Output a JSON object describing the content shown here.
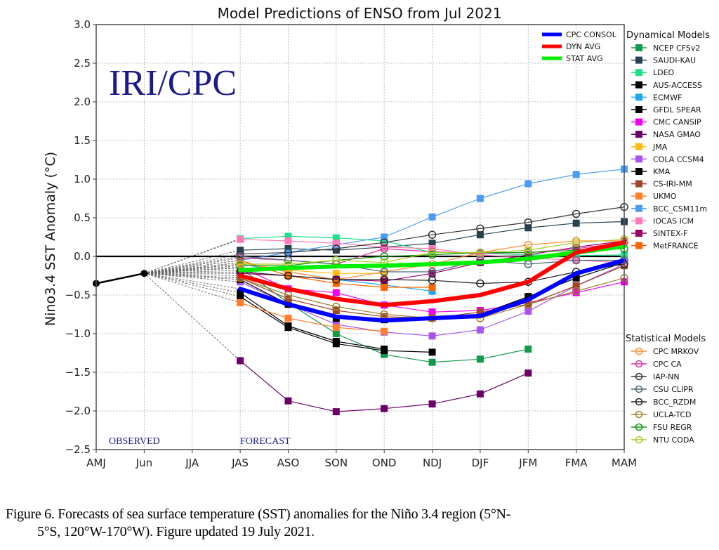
{
  "chart_data": {
    "type": "line",
    "title": "Model Predictions of ENSO from Jul 2021",
    "xlabel": "",
    "ylabel": "Nino3.4 SST Anomaly (°C)",
    "ylim": [
      -2.5,
      3.0
    ],
    "yticks": [
      "3.0",
      "2.5",
      "2.0",
      "1.5",
      "1.0",
      "0.5",
      "0.0",
      "−0.5",
      "−1.0",
      "−1.5",
      "−2.0",
      "−2.5"
    ],
    "ytick_values": [
      3.0,
      2.5,
      2.0,
      1.5,
      1.0,
      0.5,
      0.0,
      -0.5,
      -1.0,
      -1.5,
      -2.0,
      -2.5
    ],
    "categories": [
      "AMJ",
      "Jun",
      "JJA",
      "JAS",
      "ASO",
      "SON",
      "OND",
      "NDJ",
      "DJF",
      "JFM",
      "FMA",
      "MAM"
    ],
    "grid": true,
    "watermark": "IRI/CPC",
    "annotations": {
      "observed": "OBSERVED",
      "forecast": "FORECAST"
    },
    "observed": {
      "name": "Observed",
      "color": "#000000",
      "x": [
        "AMJ",
        "Jun"
      ],
      "values": [
        -0.35,
        -0.22
      ]
    },
    "zero_line": 0.0,
    "averages": [
      {
        "name": "CPC CONSOL",
        "color": "#0000ff",
        "values": [
          null,
          null,
          null,
          -0.42,
          -0.62,
          -0.78,
          -0.83,
          -0.8,
          -0.77,
          -0.56,
          -0.22,
          -0.05
        ]
      },
      {
        "name": "DYN AVG",
        "color": "#ff0000",
        "values": [
          null,
          null,
          null,
          -0.25,
          -0.42,
          -0.55,
          -0.63,
          -0.58,
          -0.5,
          -0.33,
          0.05,
          0.18
        ]
      },
      {
        "name": "STAT AVG",
        "color": "#00ee00",
        "values": [
          null,
          null,
          null,
          -0.18,
          -0.15,
          -0.13,
          -0.12,
          -0.1,
          -0.08,
          -0.03,
          0.05,
          0.13
        ]
      }
    ],
    "legend_averages_placement": "top-right inside",
    "dynamical_header": "Dynamical Models",
    "dynamical": [
      {
        "name": "NCEP CFSv2",
        "color": "#109a4a",
        "values": [
          null,
          null,
          null,
          -0.15,
          -0.6,
          -1.0,
          -1.27,
          -1.37,
          -1.33,
          -1.2,
          null,
          null
        ]
      },
      {
        "name": "SAUDI-KAU",
        "color": "#26424d",
        "values": [
          null,
          null,
          null,
          0.08,
          0.1,
          0.08,
          0.12,
          0.17,
          0.28,
          0.37,
          0.43,
          0.45
        ]
      },
      {
        "name": "LDEO",
        "color": "#1fe08a",
        "values": [
          null,
          null,
          null,
          0.23,
          0.26,
          0.24,
          0.2,
          0.05,
          0.04,
          0.02,
          0.01,
          0.02
        ]
      },
      {
        "name": "AUS-ACCESS",
        "color": "#000000",
        "values": [
          null,
          null,
          null,
          -0.52,
          -0.92,
          -1.13,
          -1.22,
          -1.24,
          null,
          null,
          null,
          null
        ]
      },
      {
        "name": "ECMWF",
        "color": "#1ea6f0",
        "values": [
          null,
          null,
          null,
          -0.1,
          -0.2,
          -0.3,
          -0.37,
          -0.45,
          null,
          null,
          null,
          null
        ]
      },
      {
        "name": "GFDL SPEAR",
        "color": "#000000",
        "values": [
          null,
          null,
          null,
          -0.47,
          -0.9,
          -1.1,
          -1.2,
          null,
          null,
          null,
          null,
          null
        ]
      },
      {
        "name": "CMC CANSIP",
        "color": "#ee00ee",
        "values": [
          null,
          null,
          null,
          -0.14,
          -0.42,
          -0.47,
          -0.63,
          -0.72,
          -0.7,
          -0.6,
          -0.47,
          -0.33
        ]
      },
      {
        "name": "NASA GMAO",
        "color": "#6a0066",
        "values": [
          null,
          null,
          null,
          -1.35,
          -1.87,
          -2.01,
          -1.97,
          -1.91,
          -1.78,
          -1.51,
          null,
          null
        ]
      },
      {
        "name": "JMA",
        "color": "#ffbb11",
        "values": [
          null,
          null,
          null,
          -0.08,
          -0.18,
          -0.22,
          -0.22,
          null,
          null,
          null,
          null,
          null
        ]
      },
      {
        "name": "COLA CCSM4",
        "color": "#a855f0",
        "values": [
          null,
          null,
          null,
          -0.33,
          -0.62,
          -0.88,
          -0.98,
          -1.03,
          -0.95,
          -0.71,
          -0.38,
          -0.1
        ]
      },
      {
        "name": "KMA",
        "color": "#000000",
        "values": [
          null,
          null,
          null,
          -0.3,
          -0.62,
          -0.8,
          -0.82,
          -0.8,
          -0.75,
          -0.52,
          -0.28,
          -0.08
        ]
      },
      {
        "name": "CS-IRI-MM",
        "color": "#a0442a",
        "values": [
          null,
          null,
          null,
          -0.28,
          -0.55,
          -0.7,
          -0.78,
          -0.8,
          -0.72,
          -0.62,
          -0.38,
          -0.12
        ]
      },
      {
        "name": "UKMO",
        "color": "#ff7f2a",
        "values": [
          null,
          null,
          null,
          -0.6,
          -0.8,
          -0.92,
          -0.97,
          null,
          null,
          null,
          null,
          null
        ]
      },
      {
        "name": "BCC_CSM11m",
        "color": "#4a9cf5",
        "values": [
          null,
          null,
          null,
          -0.05,
          0.05,
          0.15,
          0.25,
          0.51,
          0.75,
          0.94,
          1.06,
          1.13
        ]
      },
      {
        "name": "IOCAS ICM",
        "color": "#ff7ab8",
        "values": [
          null,
          null,
          null,
          0.22,
          0.2,
          0.17,
          0.12,
          0.1,
          0.02,
          -0.02,
          -0.05,
          -0.08
        ]
      },
      {
        "name": "SINTEX-F",
        "color": "#990066",
        "values": [
          null,
          null,
          null,
          -0.22,
          -0.25,
          -0.3,
          -0.32,
          -0.22,
          -0.08,
          0.02,
          0.12,
          0.2
        ]
      },
      {
        "name": "MetFRANCE",
        "color": "#ff6600",
        "values": [
          null,
          null,
          null,
          -0.05,
          -0.25,
          -0.35,
          -0.4,
          -0.4,
          null,
          null,
          null,
          null
        ]
      }
    ],
    "statistical_header": "Statistical Models",
    "statistical": [
      {
        "name": "CPC MRKOV",
        "color": "#ff8c33",
        "values": [
          null,
          null,
          null,
          -0.08,
          -0.2,
          -0.3,
          -0.2,
          -0.1,
          0.05,
          0.15,
          0.2,
          0.2
        ]
      },
      {
        "name": "CPC CA",
        "color": "#d6339d",
        "values": [
          null,
          null,
          null,
          -0.02,
          -0.05,
          -0.1,
          0.1,
          0.06,
          0.04,
          0.05,
          0.1,
          0.18
        ]
      },
      {
        "name": "IAP-NN",
        "color": "#333333",
        "values": [
          null,
          null,
          null,
          0.03,
          0.05,
          0.1,
          0.18,
          0.28,
          0.36,
          0.44,
          0.55,
          0.64
        ]
      },
      {
        "name": "CSU CLIPR",
        "color": "#4a6a7a",
        "values": [
          null,
          null,
          null,
          0.0,
          -0.05,
          -0.1,
          -0.2,
          -0.2,
          -0.05,
          -0.1,
          -0.05,
          -0.05
        ]
      },
      {
        "name": "BCC_RZDM",
        "color": "#222222",
        "values": [
          null,
          null,
          null,
          -0.2,
          -0.25,
          -0.3,
          -0.3,
          -0.31,
          -0.35,
          -0.33,
          -0.2,
          -0.1
        ]
      },
      {
        "name": "UCLA-TCD",
        "color": "#a08030",
        "values": [
          null,
          null,
          null,
          -0.28,
          -0.5,
          -0.65,
          -0.75,
          -0.8,
          -0.8,
          -0.62,
          -0.45,
          -0.28
        ]
      },
      {
        "name": "FSU REGR",
        "color": "#119911",
        "values": [
          null,
          null,
          null,
          -0.12,
          -0.12,
          -0.05,
          0.0,
          0.02,
          0.05,
          0.05,
          0.08,
          0.1
        ]
      },
      {
        "name": "NTU CODA",
        "color": "#aacc22",
        "values": [
          null,
          null,
          null,
          -0.1,
          -0.1,
          -0.05,
          -0.08,
          0.05,
          0.05,
          0.08,
          0.18,
          0.22
        ]
      }
    ]
  },
  "caption": {
    "line1": "Figure  6. Forecasts of sea surface temperature (SST) anomalies  for the Niño 3.4 region (5°N-",
    "line2": "5°S, 120°W-170°W).  Figure  updated 19 July 2021."
  }
}
